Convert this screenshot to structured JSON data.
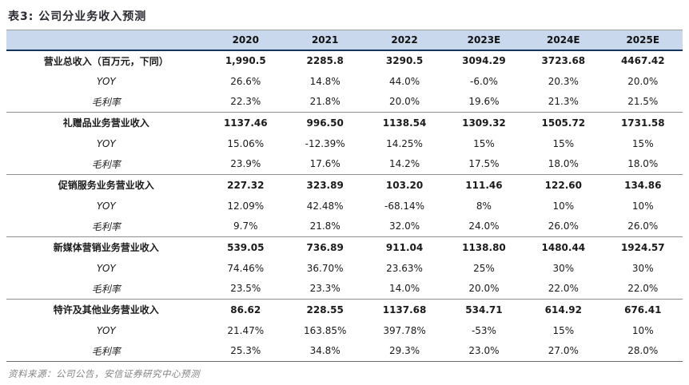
{
  "title": "表3: 公司分业务收入预测",
  "source": "资料来源：公司公告，安信证券研究中心预测",
  "colors": {
    "header_bg": "#c9d8ec",
    "header_underline": "#17365d",
    "section_divider": "#8f8f8f",
    "title_text": "#2b2b33",
    "source_text": "#848484"
  },
  "chart_data": {
    "type": "table",
    "columns": [
      "",
      "2020",
      "2021",
      "2022",
      "2023E",
      "2024E",
      "2025E"
    ],
    "rows": [
      {
        "label": "营业总收入（百万元，下同）",
        "type": "revenue",
        "values": [
          "1,990.5",
          "2285.8",
          "3290.5",
          "3094.29",
          "3723.68",
          "4467.42"
        ]
      },
      {
        "label": "YOY",
        "type": "yoy",
        "values": [
          "26.6%",
          "14.8%",
          "44.0%",
          "-6.0%",
          "20.3%",
          "20.0%"
        ]
      },
      {
        "label": "毛利率",
        "type": "margin",
        "values": [
          "22.3%",
          "21.8%",
          "20.0%",
          "19.6%",
          "21.3%",
          "21.5%"
        ]
      },
      {
        "label": "礼赠品业务营业收入",
        "type": "revenue",
        "values": [
          "1137.46",
          "996.50",
          "1138.54",
          "1309.32",
          "1505.72",
          "1731.58"
        ]
      },
      {
        "label": "YOY",
        "type": "yoy",
        "values": [
          "15.06%",
          "-12.39%",
          "14.25%",
          "15%",
          "15%",
          "15%"
        ]
      },
      {
        "label": "毛利率",
        "type": "margin",
        "values": [
          "23.9%",
          "17.6%",
          "14.2%",
          "17.5%",
          "18.0%",
          "18.0%"
        ]
      },
      {
        "label": "促销服务业务营业收入",
        "type": "revenue",
        "values": [
          "227.32",
          "323.89",
          "103.20",
          "111.46",
          "122.60",
          "134.86"
        ]
      },
      {
        "label": "YOY",
        "type": "yoy",
        "values": [
          "12.09%",
          "42.48%",
          "-68.14%",
          "8%",
          "10%",
          "10%"
        ]
      },
      {
        "label": "毛利率",
        "type": "margin",
        "values": [
          "9.7%",
          "21.8%",
          "32.0%",
          "24.0%",
          "26.0%",
          "26.0%"
        ]
      },
      {
        "label": "新媒体营销业务营业收入",
        "type": "revenue",
        "values": [
          "539.05",
          "736.89",
          "911.04",
          "1138.80",
          "1480.44",
          "1924.57"
        ]
      },
      {
        "label": "YOY",
        "type": "yoy",
        "values": [
          "74.46%",
          "36.70%",
          "23.63%",
          "25%",
          "30%",
          "30%"
        ]
      },
      {
        "label": "毛利率",
        "type": "margin",
        "values": [
          "23.5%",
          "23.3%",
          "14.0%",
          "20.0%",
          "22.0%",
          "22.0%"
        ]
      },
      {
        "label": "特许及其他业务营业收入",
        "type": "revenue",
        "values": [
          "86.62",
          "228.55",
          "1137.68",
          "534.71",
          "614.92",
          "676.41"
        ]
      },
      {
        "label": "YOY",
        "type": "yoy",
        "values": [
          "21.47%",
          "163.85%",
          "397.78%",
          "-53%",
          "15%",
          "10%"
        ]
      },
      {
        "label": "毛利率",
        "type": "margin",
        "values": [
          "25.3%",
          "34.8%",
          "29.3%",
          "23.0%",
          "27.0%",
          "28.0%"
        ]
      }
    ]
  }
}
